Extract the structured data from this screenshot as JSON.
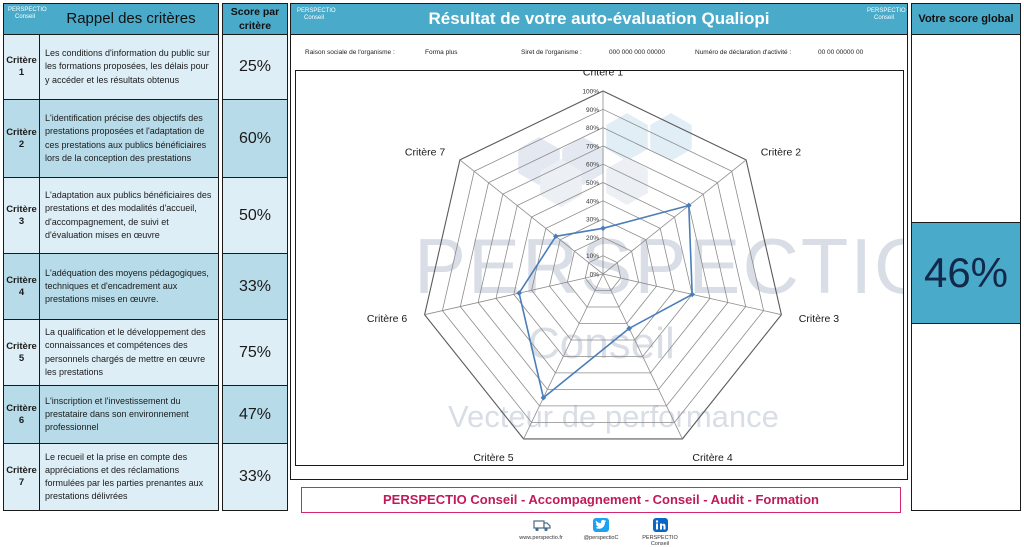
{
  "logo_text": {
    "name": "PERSPECTIO",
    "sub": "Conseil"
  },
  "criteria_panel": {
    "title": "Rappel des critères",
    "score_header": "Score par critère",
    "rows": [
      {
        "label": "Critère 1",
        "text": "Les conditions d'information du public sur les formations proposées, les délais pour y accéder et les résultats obtenus",
        "score": "25%"
      },
      {
        "label": "Critère 2",
        "text": "L'identification précise des objectifs des prestations proposées et l'adaptation de ces prestations aux publics bénéficiaires lors de la conception des prestations",
        "score": "60%"
      },
      {
        "label": "Critère 3",
        "text": "L'adaptation aux publics bénéficiaires des prestations et des modalités d'accueil, d'accompagnement, de suivi et d'évaluation mises en œuvre",
        "score": "50%"
      },
      {
        "label": "Critère 4",
        "text": "L'adéquation des moyens pédagogiques, techniques et d'encadrement aux prestations mises en œuvre.",
        "score": "33%"
      },
      {
        "label": "Critère 5",
        "text": "La qualification et le développement des connaissances et compétences des personnels chargés de mettre en œuvre les prestations",
        "score": "75%"
      },
      {
        "label": "Critère 6",
        "text": "L'inscription et l'investissement du prestataire dans son environnement professionnel",
        "score": "47%"
      },
      {
        "label": "Critère 7",
        "text": "Le recueil et la prise en compte des appréciations et des réclamations formulées par les parties prenantes aux prestations délivrées",
        "score": "33%"
      }
    ]
  },
  "main": {
    "title": "Résultat de votre auto-évaluation Qualiopi",
    "info": {
      "raison_label": "Raison sociale de l'organisme :",
      "raison_value": "Forma plus",
      "siret_label": "Siret de l'organisme :",
      "siret_value": "000 000 000 00000",
      "decl_label": "Numéro de déclaration d'activité :",
      "decl_value": "00 00 00000 00"
    },
    "watermark": {
      "line1": "PERSPECTIO",
      "line2": "Conseil",
      "line3": "Vecteur de performance"
    }
  },
  "chart_data": {
    "type": "radar",
    "categories": [
      "Critère 1",
      "Critère 2",
      "Critère 3",
      "Critère 4",
      "Critère 5",
      "Critère 6",
      "Critère 7"
    ],
    "values": [
      25,
      60,
      50,
      33,
      75,
      47,
      33
    ],
    "ylim": [
      0,
      100
    ],
    "ticks": [
      "0%",
      "10%",
      "20%",
      "30%",
      "40%",
      "50%",
      "60%",
      "70%",
      "80%",
      "90%",
      "100%"
    ],
    "grid": true,
    "series_color": "#4a7ebb"
  },
  "banner": {
    "text": "PERSPECTIO Conseil - Accompagnement - Conseil - Audit - Formation"
  },
  "footer": {
    "website": "www.perspectio.fr",
    "twitter": "@perspectioC",
    "linkedin": "PERSPECTIO Conseil"
  },
  "global": {
    "title": "Votre score global",
    "value": "46%"
  },
  "colors": {
    "header": "#4aaac9",
    "row_light": "#deeef6",
    "row_dark": "#b7dbe8",
    "banner": "#c01a5a"
  }
}
